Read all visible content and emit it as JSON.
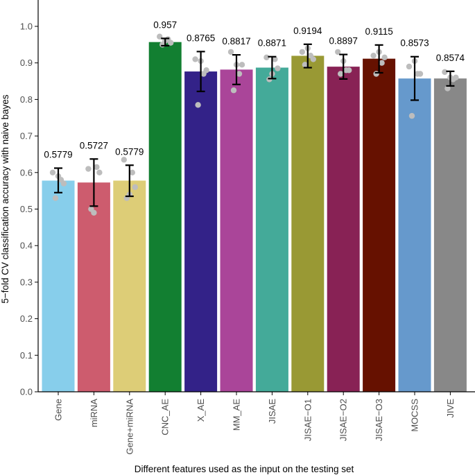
{
  "chart_data": {
    "type": "bar",
    "title": "",
    "xlabel": "Different features used as the input on the testing set",
    "ylabel": "5−fold CV classification accuracy with naive bayes",
    "ylim": [
      0.0,
      1.05
    ],
    "yticks": [
      "0.0",
      "0.1",
      "0.2",
      "0.3",
      "0.4",
      "0.5",
      "0.6",
      "0.7",
      "0.8",
      "0.9",
      "1.0"
    ],
    "grid": false,
    "legend": "none",
    "categories": [
      "Gene",
      "miRNA",
      "Gene+miRNA",
      "CNC_AE",
      "X_AE",
      "MM_AE",
      "JISAE",
      "JISAE−O1",
      "JISAE−O2",
      "JISAE−O3",
      "MOCSS",
      "JIVE"
    ],
    "values": [
      0.5779,
      0.5727,
      0.5779,
      0.957,
      0.8765,
      0.8817,
      0.8871,
      0.9194,
      0.8897,
      0.9115,
      0.8573,
      0.8574
    ],
    "value_labels": [
      "0.5779",
      "0.5727",
      "0.5779",
      "0.957",
      "0.8765",
      "0.8817",
      "0.8871",
      "0.9194",
      "0.8897",
      "0.9115",
      "0.8573",
      "0.8574"
    ],
    "error": [
      [
        0.545,
        0.612
      ],
      [
        0.508,
        0.637
      ],
      [
        0.535,
        0.62
      ],
      [
        0.947,
        0.967
      ],
      [
        0.822,
        0.931
      ],
      [
        0.841,
        0.922
      ],
      [
        0.857,
        0.917
      ],
      [
        0.887,
        0.951
      ],
      [
        0.856,
        0.923
      ],
      [
        0.873,
        0.949
      ],
      [
        0.798,
        0.917
      ],
      [
        0.837,
        0.877
      ]
    ],
    "points": [
      [
        0.6,
        0.53,
        0.59,
        0.58,
        0.57
      ],
      [
        0.61,
        0.5,
        0.49,
        0.615,
        0.6
      ],
      [
        0.635,
        0.53,
        0.54,
        0.6,
        0.56
      ],
      [
        0.972,
        0.95,
        0.96,
        0.965,
        0.955
      ],
      [
        0.91,
        0.785,
        0.905,
        0.87,
        0.88
      ],
      [
        0.93,
        0.825,
        0.895,
        0.87,
        0.895
      ],
      [
        0.915,
        0.855,
        0.87,
        0.91,
        0.885
      ],
      [
        0.93,
        0.895,
        0.94,
        0.92,
        0.91
      ],
      [
        0.93,
        0.87,
        0.905,
        0.88,
        0.88
      ],
      [
        0.92,
        0.87,
        0.93,
        0.9,
        0.915
      ],
      [
        0.89,
        0.755,
        0.905,
        0.87,
        0.87
      ],
      [
        0.875,
        0.83,
        0.86,
        0.855,
        0.86
      ]
    ],
    "colors": [
      "#87ceeb",
      "#cd5c6e",
      "#ddcd77",
      "#127f31",
      "#332288",
      "#aa4599",
      "#44aa99",
      "#999934",
      "#882255",
      "#661100",
      "#6699cc",
      "#888888"
    ],
    "point_color": "#bdbdbd",
    "error_color": "#000000"
  }
}
